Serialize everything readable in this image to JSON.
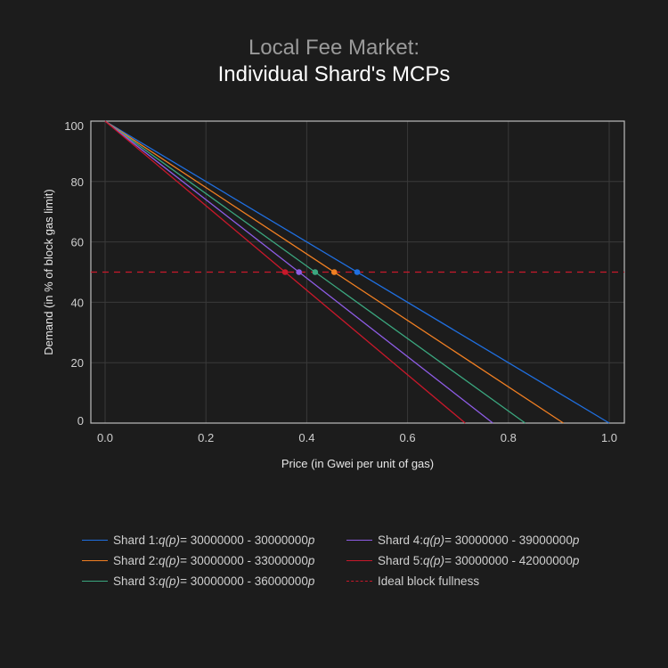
{
  "title": {
    "line1": "Local Fee Market:",
    "line2": "Individual Shard's MCPs"
  },
  "axes": {
    "xlabel": "Price (in Gwei per unit of gas)",
    "ylabel": "Demand (in % of block gas limit)",
    "xticks": [
      "0.0",
      "0.2",
      "0.4",
      "0.6",
      "0.8",
      "1.0"
    ],
    "yticks": [
      "0",
      "20",
      "40",
      "60",
      "80",
      "100"
    ]
  },
  "legend": [
    {
      "prefix": "Shard 1: ",
      "fn": "q(p)",
      "eq": " = 30000000 - 30000000",
      "var": "p",
      "color": "#1f6fe0"
    },
    {
      "prefix": "Shard 2: ",
      "fn": "q(p)",
      "eq": " = 30000000 - 33000000",
      "var": "p",
      "color": "#f07f22"
    },
    {
      "prefix": "Shard 3: ",
      "fn": "q(p)",
      "eq": " = 30000000 - 36000000",
      "var": "p",
      "color": "#3ba77f"
    },
    {
      "prefix": "Shard 4: ",
      "fn": "q(p)",
      "eq": " = 30000000 - 39000000",
      "var": "p",
      "color": "#8e5ce6"
    },
    {
      "prefix": "Shard 5: ",
      "fn": "q(p)",
      "eq": " = 30000000 - 42000000",
      "var": "p",
      "color": "#c8182a"
    },
    {
      "label": "Ideal block fullness",
      "color": "#c8182a"
    }
  ],
  "chart_data": {
    "type": "line",
    "title": "Local Fee Market: Individual Shard's MCPs",
    "xlabel": "Price (in Gwei per unit of gas)",
    "ylabel": "Demand (in % of block gas limit)",
    "xlim": [
      -0.03,
      1.03
    ],
    "ylim": [
      -1.5,
      101.5
    ],
    "grid": true,
    "legend_position": "below",
    "series": [
      {
        "name": "Shard 1: q(p) = 30000000 - 30000000p",
        "color": "#1f6fe0",
        "x": [
          0,
          1.0
        ],
        "y": [
          100,
          0
        ],
        "mcp": [
          0.5,
          50
        ]
      },
      {
        "name": "Shard 2: q(p) = 30000000 - 33000000p",
        "color": "#f07f22",
        "x": [
          0,
          0.9091
        ],
        "y": [
          100,
          0
        ],
        "mcp": [
          0.4545,
          50
        ]
      },
      {
        "name": "Shard 3: q(p) = 30000000 - 36000000p",
        "color": "#3ba77f",
        "x": [
          0,
          0.8333
        ],
        "y": [
          100,
          0
        ],
        "mcp": [
          0.4167,
          50
        ]
      },
      {
        "name": "Shard 4: q(p) = 30000000 - 39000000p",
        "color": "#8e5ce6",
        "x": [
          0,
          0.7692
        ],
        "y": [
          100,
          0
        ],
        "mcp": [
          0.3846,
          50
        ]
      },
      {
        "name": "Shard 5: q(p) = 30000000 - 42000000p",
        "color": "#c8182a",
        "x": [
          0,
          0.7143
        ],
        "y": [
          100,
          0
        ],
        "mcp": [
          0.3571,
          50
        ]
      },
      {
        "name": "Ideal block fullness",
        "color": "#c8182a",
        "style": "dashed",
        "y_const": 50
      }
    ]
  }
}
